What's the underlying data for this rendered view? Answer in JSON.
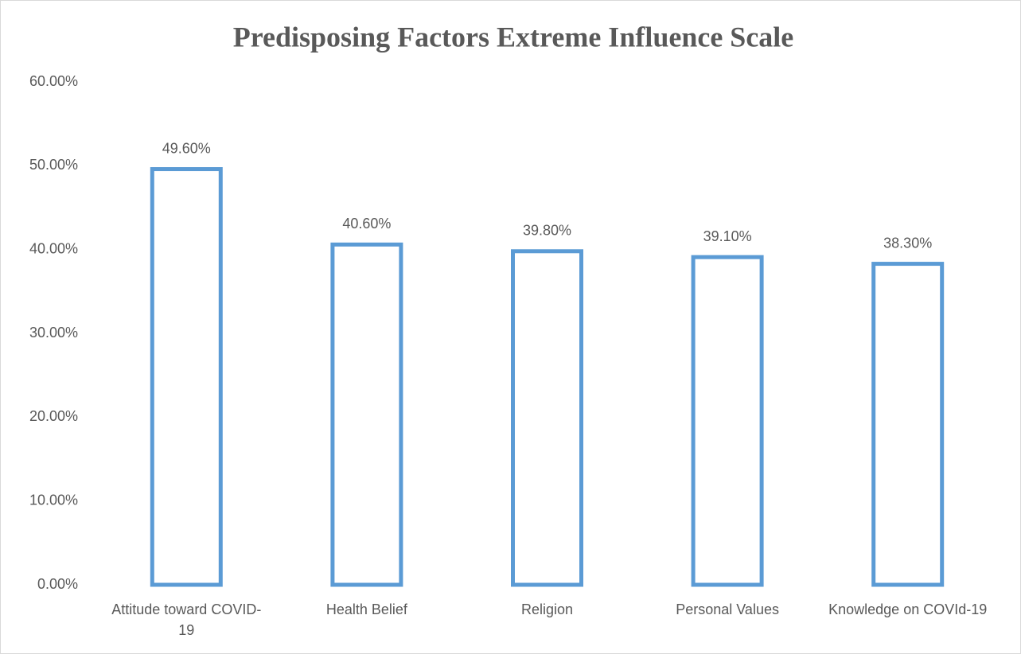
{
  "chart_data": {
    "type": "bar",
    "title": "Predisposing Factors Extreme Influence Scale",
    "categories": [
      "Attitude toward COVID-19",
      "Health Belief",
      "Religion",
      "Personal Values",
      "Knowledge on COVId-19"
    ],
    "values": [
      49.6,
      40.6,
      39.8,
      39.1,
      38.3
    ],
    "value_labels": [
      "49.60%",
      "40.60%",
      "39.80%",
      "39.10%",
      "38.30%"
    ],
    "color": "#5b9bd5",
    "ylim": [
      0,
      60
    ],
    "yticks": [
      {
        "value": 0,
        "label": "0.00%"
      },
      {
        "value": 10,
        "label": "10.00%"
      },
      {
        "value": 20,
        "label": "20.00%"
      },
      {
        "value": 30,
        "label": "30.00%"
      },
      {
        "value": 40,
        "label": "40.00%"
      },
      {
        "value": 50,
        "label": "50.00%"
      },
      {
        "value": 60,
        "label": "60.00%"
      }
    ],
    "grid": false
  }
}
